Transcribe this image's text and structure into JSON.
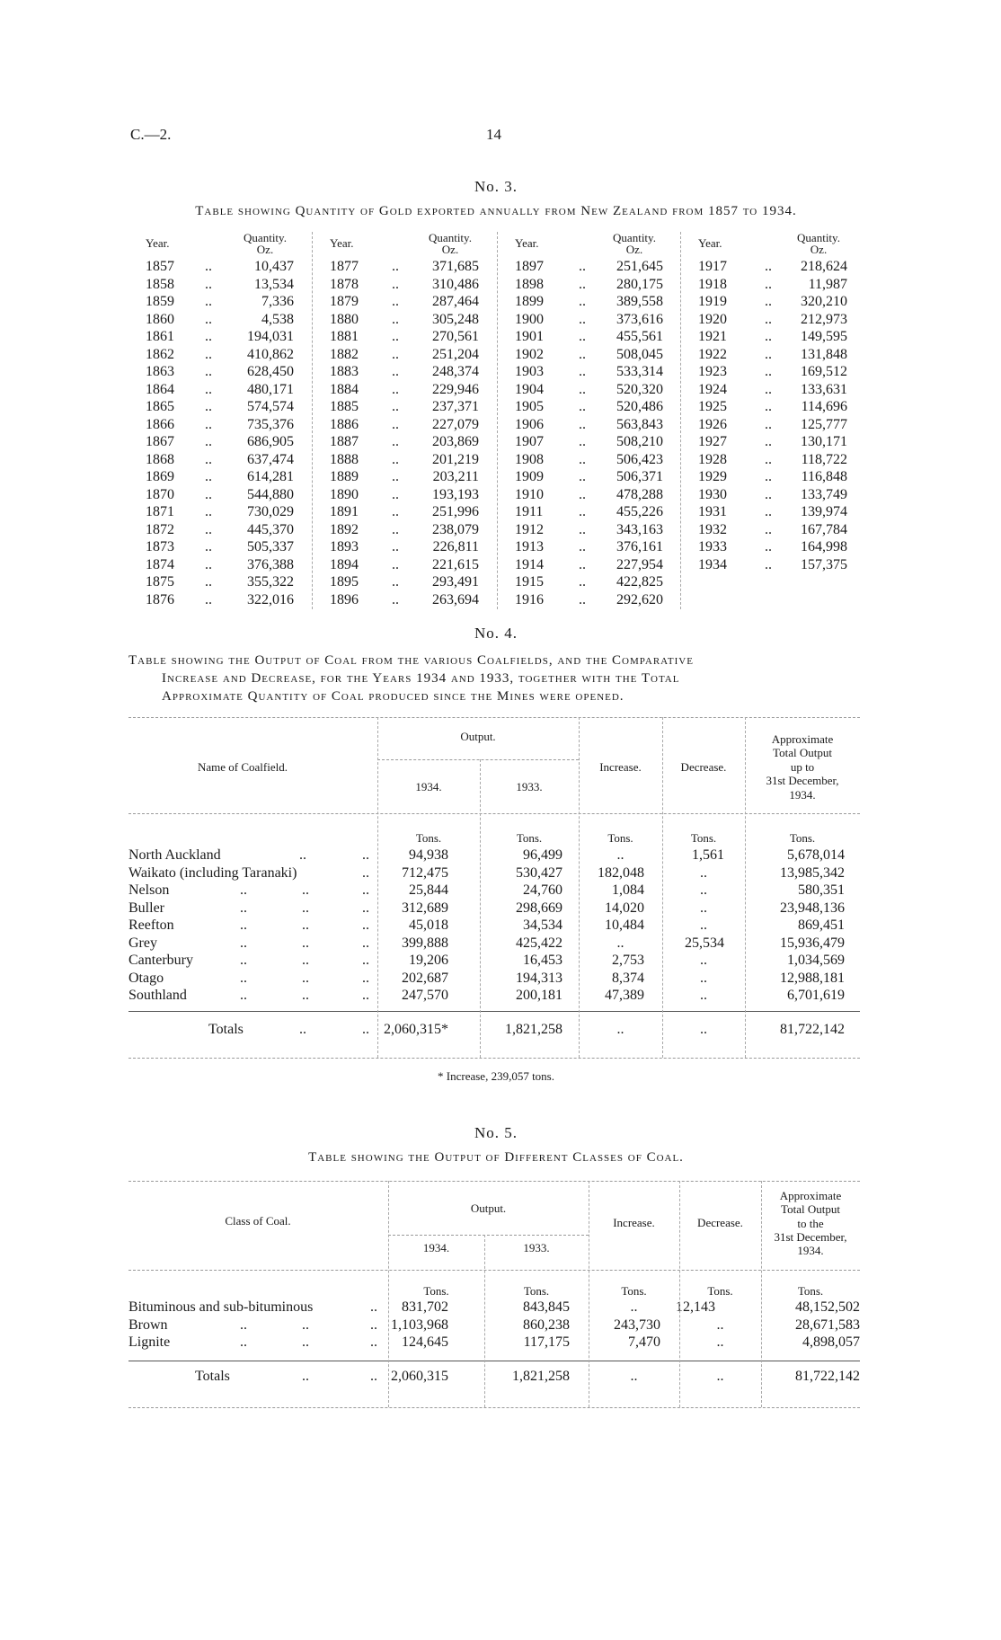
{
  "header": {
    "ref": "C.—2.",
    "page_number": "14"
  },
  "leader": "..",
  "table3": {
    "number": "No. 3.",
    "title": "Table showing Quantity of Gold exported annually from New Zealand from 1857 to 1934.",
    "year_label": "Year.",
    "qty_label": "Quantity.",
    "unit_label": "Oz.",
    "groups": [
      [
        [
          "1857",
          "10,437"
        ],
        [
          "1858",
          "13,534"
        ],
        [
          "1859",
          "7,336"
        ],
        [
          "1860",
          "4,538"
        ],
        [
          "1861",
          "194,031"
        ],
        [
          "1862",
          "410,862"
        ],
        [
          "1863",
          "628,450"
        ],
        [
          "1864",
          "480,171"
        ],
        [
          "1865",
          "574,574"
        ],
        [
          "1866",
          "735,376"
        ],
        [
          "1867",
          "686,905"
        ],
        [
          "1868",
          "637,474"
        ],
        [
          "1869",
          "614,281"
        ],
        [
          "1870",
          "544,880"
        ],
        [
          "1871",
          "730,029"
        ],
        [
          "1872",
          "445,370"
        ],
        [
          "1873",
          "505,337"
        ],
        [
          "1874",
          "376,388"
        ],
        [
          "1875",
          "355,322"
        ],
        [
          "1876",
          "322,016"
        ]
      ],
      [
        [
          "1877",
          "371,685"
        ],
        [
          "1878",
          "310,486"
        ],
        [
          "1879",
          "287,464"
        ],
        [
          "1880",
          "305,248"
        ],
        [
          "1881",
          "270,561"
        ],
        [
          "1882",
          "251,204"
        ],
        [
          "1883",
          "248,374"
        ],
        [
          "1884",
          "229,946"
        ],
        [
          "1885",
          "237,371"
        ],
        [
          "1886",
          "227,079"
        ],
        [
          "1887",
          "203,869"
        ],
        [
          "1888",
          "201,219"
        ],
        [
          "1889",
          "203,211"
        ],
        [
          "1890",
          "193,193"
        ],
        [
          "1891",
          "251,996"
        ],
        [
          "1892",
          "238,079"
        ],
        [
          "1893",
          "226,811"
        ],
        [
          "1894",
          "221,615"
        ],
        [
          "1895",
          "293,491"
        ],
        [
          "1896",
          "263,694"
        ]
      ],
      [
        [
          "1897",
          "251,645"
        ],
        [
          "1898",
          "280,175"
        ],
        [
          "1899",
          "389,558"
        ],
        [
          "1900",
          "373,616"
        ],
        [
          "1901",
          "455,561"
        ],
        [
          "1902",
          "508,045"
        ],
        [
          "1903",
          "533,314"
        ],
        [
          "1904",
          "520,320"
        ],
        [
          "1905",
          "520,486"
        ],
        [
          "1906",
          "563,843"
        ],
        [
          "1907",
          "508,210"
        ],
        [
          "1908",
          "506,423"
        ],
        [
          "1909",
          "506,371"
        ],
        [
          "1910",
          "478,288"
        ],
        [
          "1911",
          "455,226"
        ],
        [
          "1912",
          "343,163"
        ],
        [
          "1913",
          "376,161"
        ],
        [
          "1914",
          "227,954"
        ],
        [
          "1915",
          "422,825"
        ],
        [
          "1916",
          "292,620"
        ]
      ],
      [
        [
          "1917",
          "218,624"
        ],
        [
          "1918",
          "11,987"
        ],
        [
          "1919",
          "320,210"
        ],
        [
          "1920",
          "212,973"
        ],
        [
          "1921",
          "149,595"
        ],
        [
          "1922",
          "131,848"
        ],
        [
          "1923",
          "169,512"
        ],
        [
          "1924",
          "133,631"
        ],
        [
          "1925",
          "114,696"
        ],
        [
          "1926",
          "125,777"
        ],
        [
          "1927",
          "130,171"
        ],
        [
          "1928",
          "118,722"
        ],
        [
          "1929",
          "116,848"
        ],
        [
          "1930",
          "133,749"
        ],
        [
          "1931",
          "139,974"
        ],
        [
          "1932",
          "167,784"
        ],
        [
          "1933",
          "164,998"
        ],
        [
          "1934",
          "157,375"
        ]
      ]
    ]
  },
  "table4": {
    "number": "No. 4.",
    "title_lines": [
      "Table showing the Output of Coal from the various Coalfields, and the Comparative",
      "Increase and Decrease, for the Years 1934 and 1933, together with the Total",
      "Approximate Quantity of Coal produced since the Mines were opened."
    ],
    "headers": {
      "name": "Name of Coalfield.",
      "output": "Output.",
      "y1934": "1934.",
      "y1933": "1933.",
      "increase": "Increase.",
      "decrease": "Decrease.",
      "total_lines": [
        "Approximate",
        "Total Output",
        "up to",
        "31st December,",
        "1934."
      ],
      "unit": "Tons."
    },
    "rows": [
      {
        "name": "North Auckland",
        "out1934": "94,938",
        "out1933": "96,499",
        "increase": "..",
        "decrease": "1,561",
        "total": "5,678,014"
      },
      {
        "name": "Waikato (including Taranaki)",
        "out1934": "712,475",
        "out1933": "530,427",
        "increase": "182,048",
        "decrease": "..",
        "total": "13,985,342"
      },
      {
        "name": "Nelson",
        "out1934": "25,844",
        "out1933": "24,760",
        "increase": "1,084",
        "decrease": "..",
        "total": "580,351"
      },
      {
        "name": "Buller",
        "out1934": "312,689",
        "out1933": "298,669",
        "increase": "14,020",
        "decrease": "..",
        "total": "23,948,136"
      },
      {
        "name": "Reefton",
        "out1934": "45,018",
        "out1933": "34,534",
        "increase": "10,484",
        "decrease": "..",
        "total": "869,451"
      },
      {
        "name": "Grey",
        "out1934": "399,888",
        "out1933": "425,422",
        "increase": "..",
        "decrease": "25,534",
        "total": "15,936,479"
      },
      {
        "name": "Canterbury",
        "out1934": "19,206",
        "out1933": "16,453",
        "increase": "2,753",
        "decrease": "..",
        "total": "1,034,569"
      },
      {
        "name": "Otago",
        "out1934": "202,687",
        "out1933": "194,313",
        "increase": "8,374",
        "decrease": "..",
        "total": "12,988,181"
      },
      {
        "name": "Southland",
        "out1934": "247,570",
        "out1933": "200,181",
        "increase": "47,389",
        "decrease": "..",
        "total": "6,701,619"
      }
    ],
    "totals": {
      "label": "Totals",
      "out1934": "2,060,315*",
      "out1933": "1,821,258",
      "increase": "..",
      "decrease": "..",
      "total": "81,722,142"
    },
    "footnote": "* Increase, 239,057 tons."
  },
  "table5": {
    "number": "No. 5.",
    "title": "Table showing the Output of Different Classes of Coal.",
    "headers": {
      "name": "Class of Coal.",
      "output": "Output.",
      "y1934": "1934.",
      "y1933": "1933.",
      "increase": "Increase.",
      "decrease": "Decrease.",
      "total_lines": [
        "Approximate",
        "Total Output",
        "to the",
        "31st December,",
        "1934."
      ],
      "unit": "Tons."
    },
    "rows": [
      {
        "name": "Bituminous and sub-bituminous",
        "out1934": "831,702",
        "out1933": "843,845",
        "increase": "..",
        "decrease": "12,143",
        "total": "48,152,502"
      },
      {
        "name": "Brown",
        "out1934": "1,103,968",
        "out1933": "860,238",
        "increase": "243,730",
        "decrease": "..",
        "total": "28,671,583"
      },
      {
        "name": "Lignite",
        "out1934": "124,645",
        "out1933": "117,175",
        "increase": "7,470",
        "decrease": "..",
        "total": "4,898,057"
      }
    ],
    "totals": {
      "label": "Totals",
      "out1934": "2,060,315",
      "out1933": "1,821,258",
      "increase": "..",
      "decrease": "..",
      "total": "81,722,142"
    }
  }
}
